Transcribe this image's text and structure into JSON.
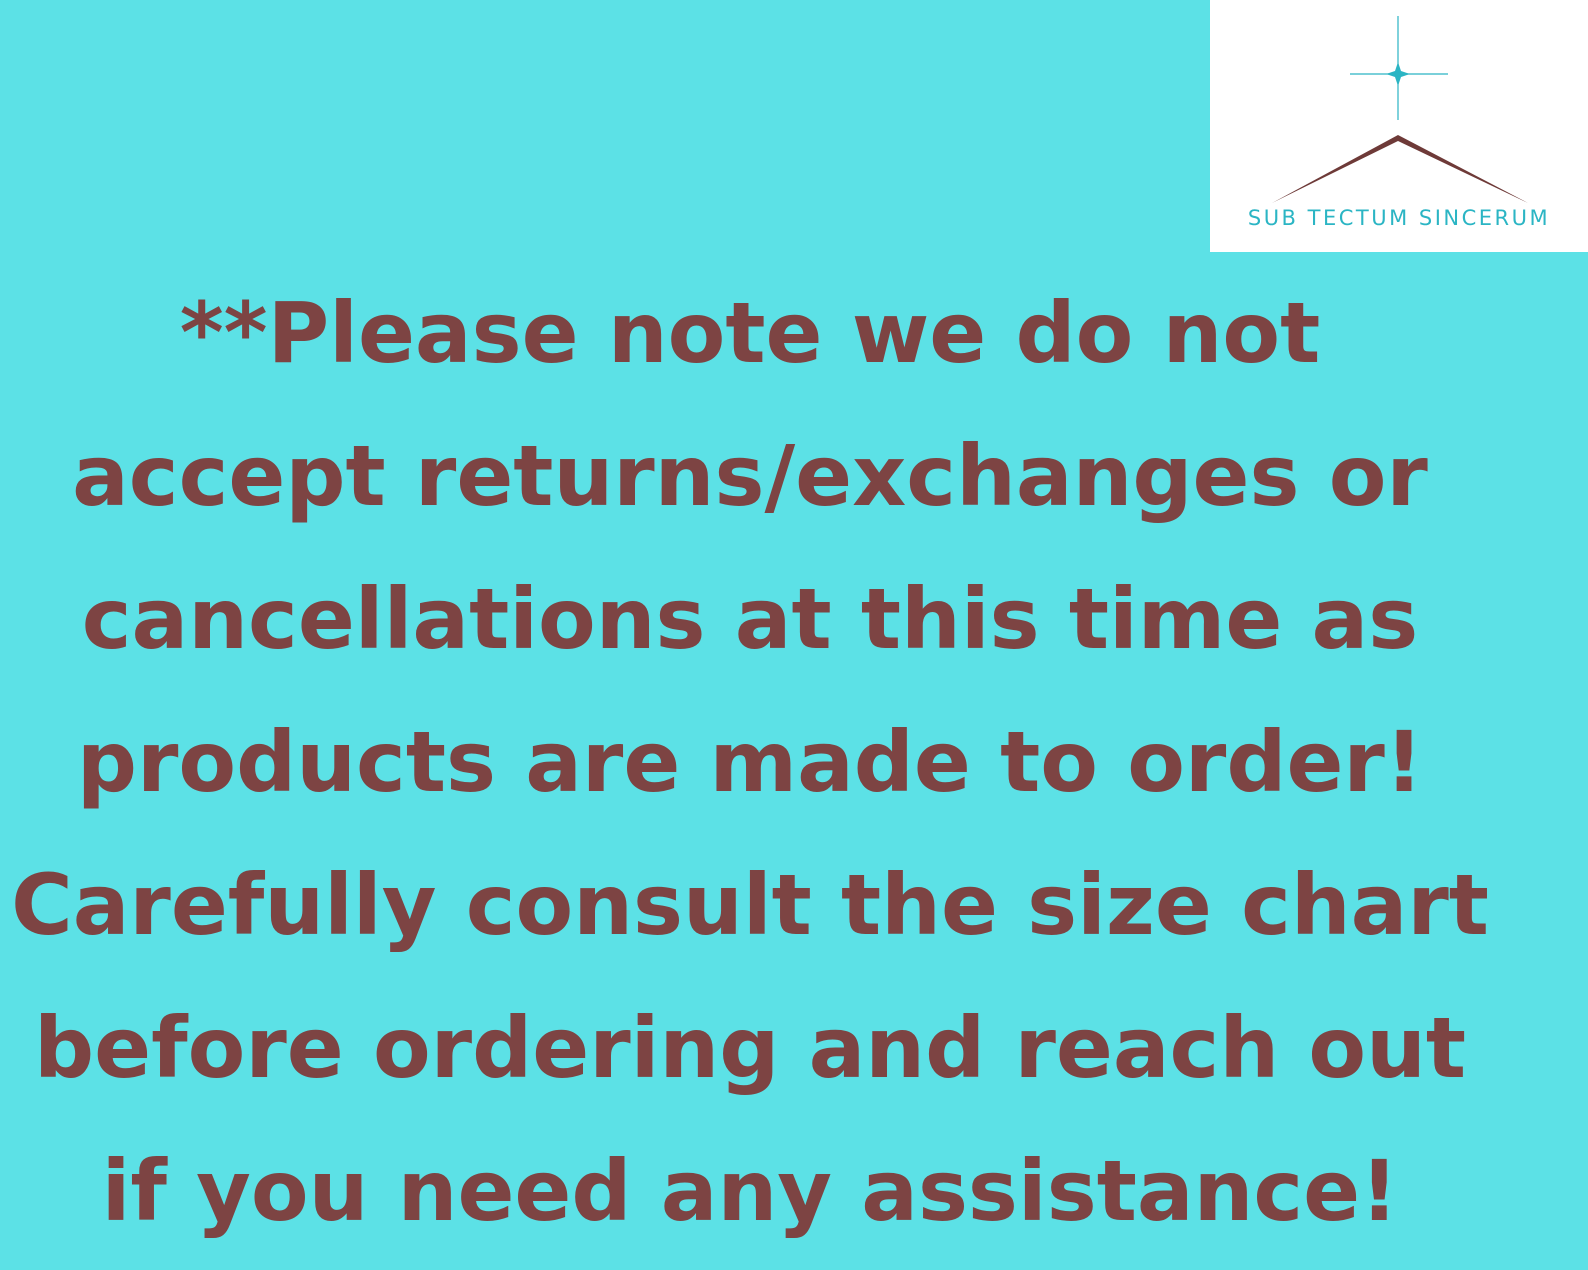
{
  "logo": {
    "brand_text": "SUB TECTUM SINCERUM",
    "icon": "star-over-roof-icon",
    "star_color": "#2bb5c4",
    "roof_color": "#6e3a38"
  },
  "notice": {
    "lines": [
      "**Please note we do not",
      "accept returns/exchanges or",
      "cancellations at this time as",
      "products are made to order!",
      "Carefully consult the size chart",
      "before ordering and reach out",
      "if you need any assistance!"
    ],
    "text_color": "#7d4443"
  },
  "background_color": "#5ce1e6"
}
